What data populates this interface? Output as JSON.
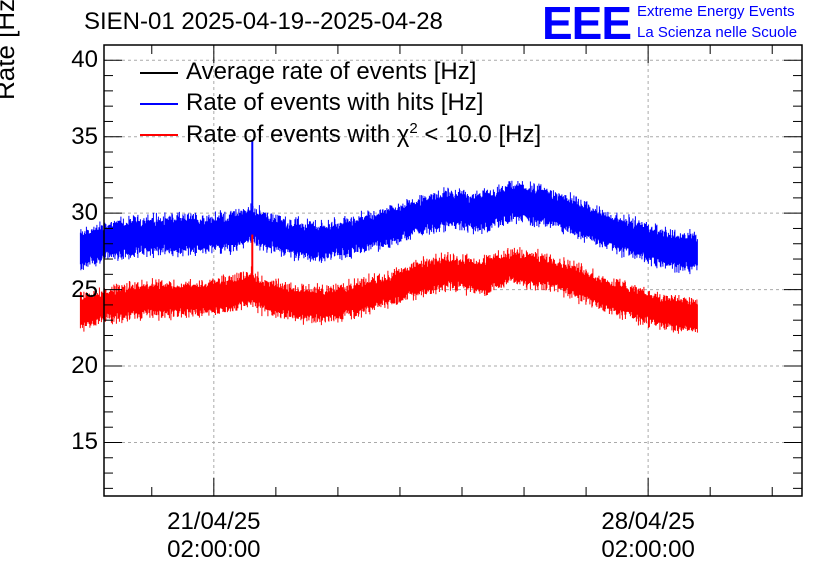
{
  "header": {
    "title": "SIEN-01 2025-04-19--2025-04-28",
    "logo_text": "EEE",
    "logo_line1": "Extreme Energy Events",
    "logo_line2": "La Scienza nelle Scuole"
  },
  "colors": {
    "average": "#000000",
    "hits": "#0000ff",
    "chi2": "#ff0000",
    "grid": "#aaaaaa",
    "brand": "#0000ff"
  },
  "chart_data": {
    "type": "line",
    "title": "SIEN-01 2025-04-19--2025-04-28",
    "xlabel": "",
    "ylabel": "Rate [Hz]",
    "ylim": [
      11.5,
      41
    ],
    "yticks": [
      "15",
      "20",
      "25",
      "30",
      "35",
      "40"
    ],
    "xlim_days": [
      -1.77,
      9.48
    ],
    "xticks": [
      {
        "day": 0,
        "date": "21/04/25",
        "time": "02:00:00"
      },
      {
        "day": 7,
        "date": "28/04/25",
        "time": "02:00:00"
      }
    ],
    "legend": [
      {
        "label": "Average rate of events [Hz]",
        "color": "#000000"
      },
      {
        "label": "Rate of events with hits [Hz]",
        "color": "#0000ff"
      },
      {
        "label": "Rate of events with χ² < 10.0 [Hz]",
        "color": "#ff0000",
        "base": "Rate of events with χ",
        "sup": "2",
        "tail": " < 10.0 [Hz]"
      }
    ],
    "series": [
      {
        "name": "Rate of events with hits [Hz]",
        "color": "#0000ff",
        "x_days": [
          -2.15,
          -1.7,
          -1.2,
          -0.7,
          -0.2,
          0.3,
          0.6,
          0.8,
          1.3,
          1.8,
          2.3,
          2.8,
          3.3,
          3.8,
          4.3,
          4.8,
          5.3,
          5.8,
          6.3,
          6.8,
          7.3,
          7.8
        ],
        "mean": [
          27.6,
          28.2,
          28.5,
          28.6,
          28.6,
          28.8,
          29.3,
          28.9,
          28.3,
          28.1,
          28.6,
          29.1,
          29.8,
          30.3,
          30.0,
          30.8,
          30.5,
          29.8,
          28.9,
          28.3,
          27.6,
          27.4
        ],
        "halfwidth": 1.3,
        "spike": {
          "x_days": 0.62,
          "value": 34.8
        }
      },
      {
        "name": "Rate of events with χ² < 10.0 [Hz]",
        "color": "#ff0000",
        "x_days": [
          -2.15,
          -1.7,
          -1.2,
          -0.7,
          -0.2,
          0.3,
          0.6,
          0.8,
          1.3,
          1.8,
          2.3,
          2.8,
          3.3,
          3.8,
          4.3,
          4.8,
          5.3,
          5.8,
          6.3,
          6.8,
          7.3,
          7.8
        ],
        "mean": [
          23.5,
          24.0,
          24.3,
          24.4,
          24.4,
          24.7,
          25.1,
          24.6,
          24.1,
          24.0,
          24.4,
          25.0,
          25.7,
          26.2,
          25.8,
          26.5,
          26.2,
          25.6,
          24.7,
          24.1,
          23.5,
          23.3
        ],
        "halfwidth": 1.2,
        "spike": {
          "x_days": 0.62,
          "value": 28.6
        }
      }
    ]
  }
}
